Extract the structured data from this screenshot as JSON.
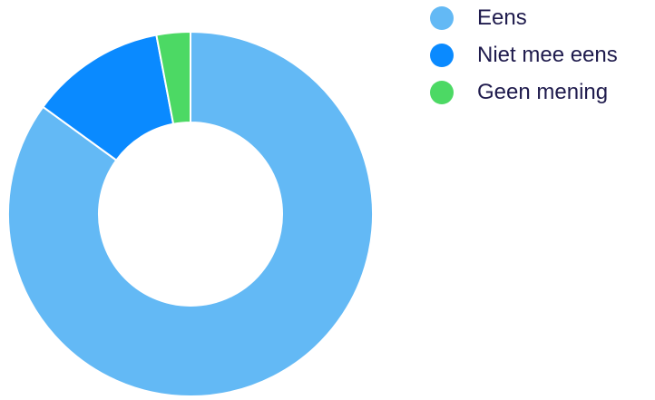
{
  "chart_data": {
    "type": "pie",
    "donut": true,
    "title": "",
    "categories": [
      "Eens",
      "Niet mee eens",
      "Geen mening"
    ],
    "values": [
      85,
      12,
      3
    ],
    "unit": "%",
    "colors": [
      "#63b9f5",
      "#0a8aff",
      "#4cd964"
    ],
    "legend_position": "top-right",
    "slice_border_color": "#ffffff",
    "start_angle_deg": 0,
    "direction": "clockwise"
  }
}
